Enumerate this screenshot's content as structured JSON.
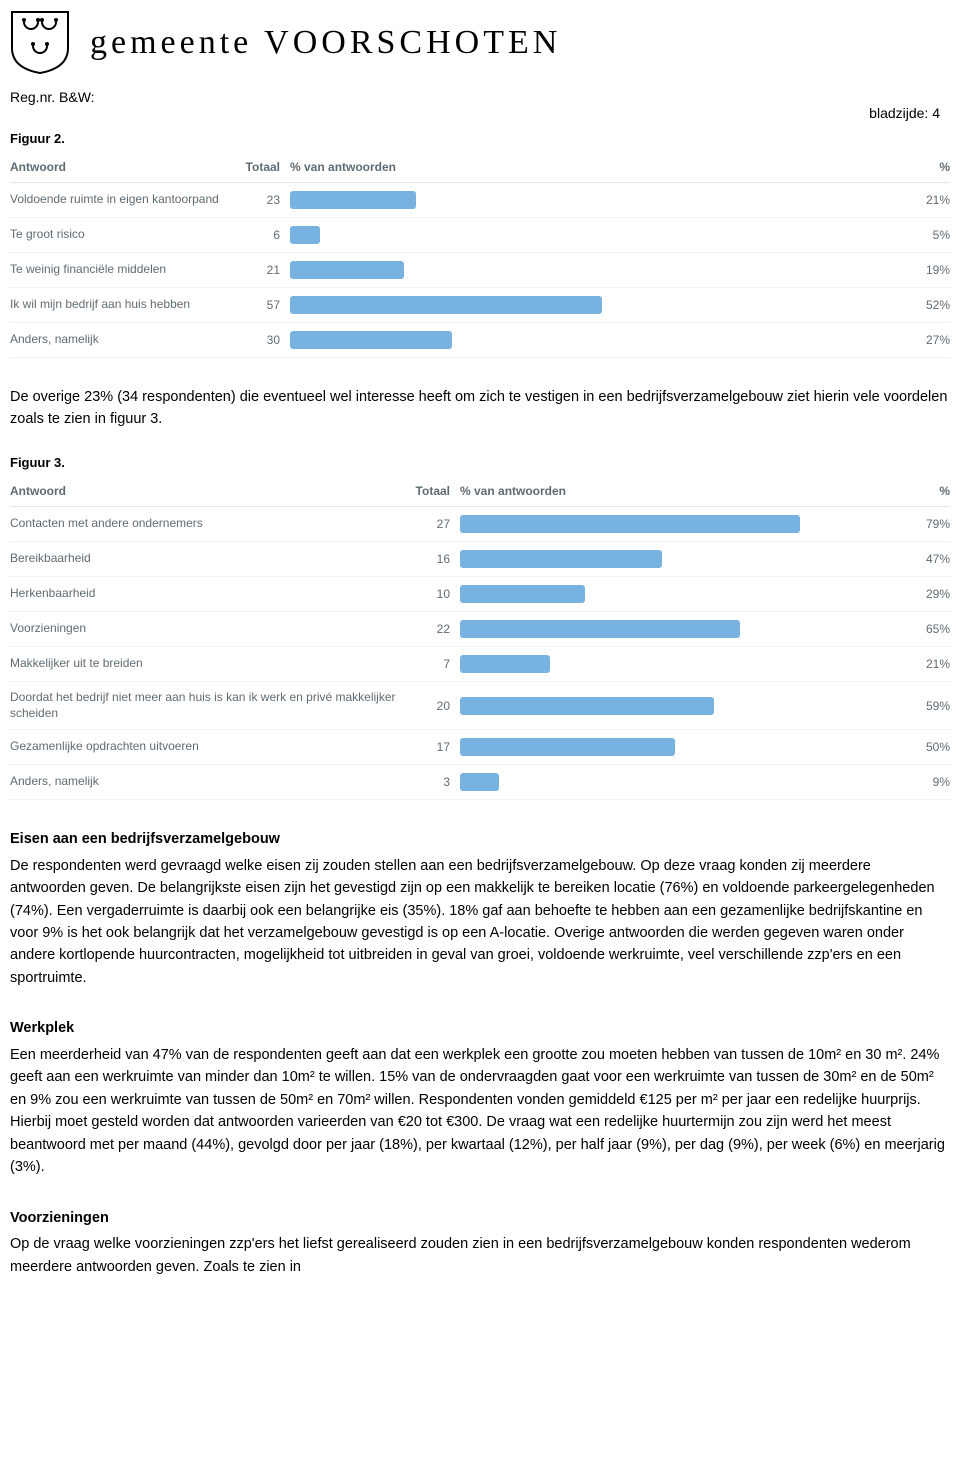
{
  "header": {
    "gemeente": "gemeente",
    "voorschoten": "VOORSCHOTEN"
  },
  "doc": {
    "regnr": "Reg.nr. B&W:",
    "pagenum": "bladzijde: 4"
  },
  "figure2": {
    "title": "Figuur 2.",
    "columns": {
      "answer": "Antwoord",
      "total": "Totaal",
      "pctbar": "% van antwoorden",
      "pct": "%"
    },
    "bar_color": "#77b2e0",
    "max_pct": 100,
    "rows": [
      {
        "label": "Voldoende ruimte in eigen kantoorpand",
        "total": 23,
        "pct": 21,
        "bar_pct": 21
      },
      {
        "label": "Te groot risico",
        "total": 6,
        "pct": 5,
        "bar_pct": 5
      },
      {
        "label": "Te weinig financiële middelen",
        "total": 21,
        "pct": 19,
        "bar_pct": 19
      },
      {
        "label": "Ik wil mijn bedrijf aan huis hebben",
        "total": 57,
        "pct": 52,
        "bar_pct": 52
      },
      {
        "label": "Anders, namelijk",
        "total": 30,
        "pct": 27,
        "bar_pct": 27
      }
    ]
  },
  "para_between": "De overige 23% (34 respondenten) die eventueel wel interesse heeft om zich te vestigen in een bedrijfsverzamelgebouw ziet hierin vele voordelen zoals te zien in figuur 3.",
  "figure3": {
    "title": "Figuur 3.",
    "columns": {
      "answer": "Antwoord",
      "total": "Totaal",
      "pctbar": "% van antwoorden",
      "pct": "%"
    },
    "bar_color": "#77b2e0",
    "max_pct": 100,
    "rows": [
      {
        "label": "Contacten met andere ondernemers",
        "total": 27,
        "pct": 79,
        "bar_pct": 79
      },
      {
        "label": "Bereikbaarheid",
        "total": 16,
        "pct": 47,
        "bar_pct": 47
      },
      {
        "label": "Herkenbaarheid",
        "total": 10,
        "pct": 29,
        "bar_pct": 29
      },
      {
        "label": "Voorzieningen",
        "total": 22,
        "pct": 65,
        "bar_pct": 65
      },
      {
        "label": "Makkelijker uit te breiden",
        "total": 7,
        "pct": 21,
        "bar_pct": 21
      },
      {
        "label": "Doordat het bedrijf niet meer aan huis is kan ik werk en privé makkelijker scheiden",
        "total": 20,
        "pct": 59,
        "bar_pct": 59
      },
      {
        "label": "Gezamenlijke opdrachten uitvoeren",
        "total": 17,
        "pct": 50,
        "bar_pct": 50
      },
      {
        "label": "Anders, namelijk",
        "total": 3,
        "pct": 9,
        "bar_pct": 9
      }
    ]
  },
  "section_eisen": {
    "heading": "Eisen aan een bedrijfsverzamelgebouw",
    "text": "De respondenten werd gevraagd welke eisen zij zouden stellen aan een bedrijfsverzamelgebouw. Op deze vraag konden zij meerdere antwoorden geven. De belangrijkste eisen zijn het gevestigd zijn op een makkelijk te bereiken locatie (76%) en voldoende parkeergelegenheden (74%). Een vergaderruimte is daarbij ook een belangrijke eis (35%). 18% gaf aan behoefte te hebben aan een gezamenlijke bedrijfskantine en voor 9% is het ook belangrijk dat het verzamelgebouw gevestigd is op een A-locatie. Overige antwoorden die werden gegeven waren onder andere kortlopende huurcontracten, mogelijkheid tot uitbreiden in geval van groei, voldoende werkruimte, veel verschillende zzp'ers en een sportruimte."
  },
  "section_werkplek": {
    "heading": "Werkplek",
    "text": "Een meerderheid van 47% van de respondenten geeft aan dat een werkplek een grootte zou moeten hebben van tussen de 10m² en 30 m². 24% geeft aan een werkruimte van minder dan 10m² te willen. 15% van de ondervraagden gaat voor een werkruimte van tussen de 30m² en de 50m² en 9% zou een werkruimte van tussen de 50m² en 70m² willen. Respondenten vonden gemiddeld €125 per m² per jaar een redelijke huurprijs. Hierbij moet gesteld worden dat antwoorden varieerden van €20 tot €300. De vraag wat een redelijke huurtermijn zou zijn werd het meest beantwoord met per maand (44%), gevolgd door per jaar (18%), per kwartaal (12%), per half jaar (9%), per dag (9%), per week (6%) en meerjarig (3%)."
  },
  "section_voorz": {
    "heading": "Voorzieningen",
    "text": "Op de vraag welke voorzieningen zzp'ers het liefst gerealiseerd zouden zien in een bedrijfsverzamelgebouw konden respondenten wederom meerdere antwoorden geven. Zoals te zien in"
  }
}
